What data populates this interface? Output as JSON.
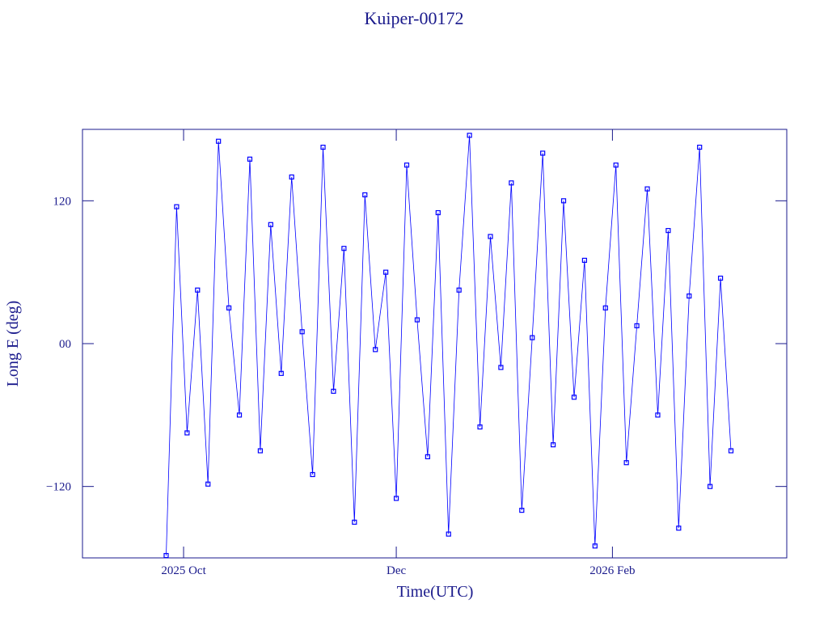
{
  "chart_data": {
    "type": "scatter",
    "title": "Kuiper-00172",
    "xlabel": "Time(UTC)",
    "ylabel": "Long E (deg)",
    "color": "#0000ff",
    "xlim": [
      "2025-09-02",
      "2026-03-23"
    ],
    "xticks": [
      {
        "value": "2025-10-01",
        "label": "2025 Oct"
      },
      {
        "value": "2025-12-01",
        "label": "Dec"
      },
      {
        "value": "2026-02-01",
        "label": "2026 Feb"
      }
    ],
    "ylim": [
      -180,
      180
    ],
    "yticks": [
      {
        "value": -120,
        "label": "−120"
      },
      {
        "value": 0,
        "label": "00"
      },
      {
        "value": 120,
        "label": "120"
      }
    ],
    "x": [
      "2025-09-26",
      "2025-09-29",
      "2025-10-02",
      "2025-10-05",
      "2025-10-08",
      "2025-10-11",
      "2025-10-14",
      "2025-10-17",
      "2025-10-20",
      "2025-10-23",
      "2025-10-26",
      "2025-10-29",
      "2025-11-01",
      "2025-11-04",
      "2025-11-07",
      "2025-11-10",
      "2025-11-13",
      "2025-11-16",
      "2025-11-19",
      "2025-11-22",
      "2025-11-25",
      "2025-11-28",
      "2025-12-01",
      "2025-12-04",
      "2025-12-07",
      "2025-12-10",
      "2025-12-13",
      "2025-12-16",
      "2025-12-19",
      "2025-12-22",
      "2025-12-25",
      "2025-12-28",
      "2025-12-31",
      "2026-01-03",
      "2026-01-06",
      "2026-01-09",
      "2026-01-12",
      "2026-01-15",
      "2026-01-18",
      "2026-01-21",
      "2026-01-24",
      "2026-01-27",
      "2026-01-30",
      "2026-02-02",
      "2026-02-05",
      "2026-02-08",
      "2026-02-11",
      "2026-02-14",
      "2026-02-17",
      "2026-02-20",
      "2026-02-23",
      "2026-02-26",
      "2026-03-01",
      "2026-03-04",
      "2026-03-07"
    ],
    "values": [
      -178,
      115,
      -75,
      45,
      -118,
      170,
      30,
      -60,
      155,
      -90,
      100,
      -25,
      140,
      10,
      -110,
      165,
      -40,
      80,
      -150,
      125,
      -5,
      60,
      -130,
      150,
      20,
      -95,
      110,
      -160,
      45,
      175,
      -70,
      90,
      -20,
      135,
      -140,
      5,
      160,
      -85,
      120,
      -45,
      70,
      -170,
      30,
      150,
      -100,
      15,
      130,
      -60,
      95,
      -155,
      40,
      165,
      -120,
      55,
      -90
    ]
  }
}
